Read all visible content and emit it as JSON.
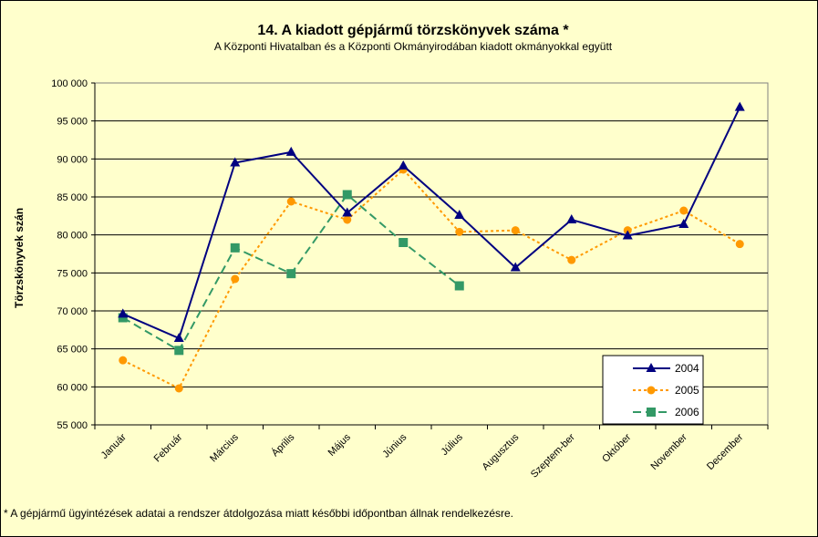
{
  "chart_data": {
    "type": "line",
    "title": "14. A  kiadott gépjármű  törzskönyvek száma *",
    "subtitle": "A Központi Hivatalban és a Központi Okmányirodában kiadott okmányokkal együtt",
    "xlabel": "",
    "ylabel": "Törzskönyvek szán",
    "ylim": [
      55000,
      100000
    ],
    "yticks": [
      55000,
      60000,
      65000,
      70000,
      75000,
      80000,
      85000,
      90000,
      95000,
      100000
    ],
    "ytick_labels": [
      "55 000",
      "60 000",
      "65 000",
      "70 000",
      "75 000",
      "80 000",
      "85 000",
      "90 000",
      "95 000",
      "100 000"
    ],
    "categories": [
      "Január",
      "Február",
      "Március",
      "Április",
      "Május",
      "Június",
      "Július",
      "Augusztus",
      "Szeptem-ber",
      "Október",
      "November",
      "December"
    ],
    "grid": "horizontal",
    "legend_position": "bottom-right",
    "series": [
      {
        "name": "2004",
        "color": "#000080",
        "marker": "triangle",
        "dash": "solid",
        "values": [
          69600,
          66400,
          89500,
          90900,
          82900,
          89100,
          82600,
          75700,
          82000,
          79900,
          81400,
          96800
        ]
      },
      {
        "name": "2005",
        "color": "#ff9900",
        "marker": "circle",
        "dash": "dotted",
        "values": [
          63500,
          59800,
          74200,
          84400,
          82000,
          88600,
          80400,
          80600,
          76700,
          80600,
          83200,
          78800
        ]
      },
      {
        "name": "2006",
        "color": "#339966",
        "marker": "square",
        "dash": "dashed",
        "values": [
          69100,
          64800,
          78300,
          74900,
          85300,
          79000,
          73300,
          null,
          null,
          null,
          null,
          null
        ]
      }
    ]
  },
  "footnote": "* A gépjármű ügyintézések adatai a rendszer átdolgozása miatt későbbi időpontban állnak rendelkezésre."
}
